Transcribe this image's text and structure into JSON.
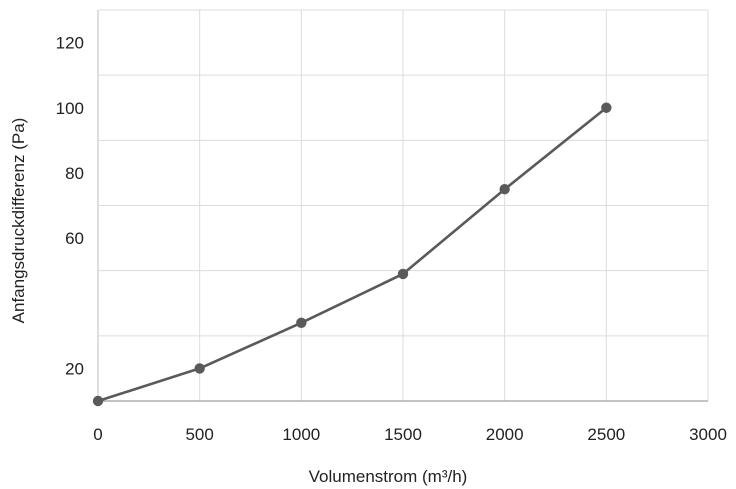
{
  "chart_data": {
    "type": "line",
    "xlabel": "Volumenstrom (m³/h)",
    "ylabel": "Anfangsdruckdifferenz (Pa)",
    "xlim": [
      0,
      3000
    ],
    "ylim": [
      10,
      130
    ],
    "x_ticks": [
      0,
      500,
      1000,
      1500,
      2000,
      2500,
      3000
    ],
    "y_ticks": [
      20,
      60,
      80,
      100,
      120
    ],
    "grid": true,
    "legend": "none",
    "series": [
      {
        "x": [
          0,
          500,
          1000,
          1500,
          2000,
          2500
        ],
        "y": [
          10,
          20,
          34,
          49,
          75,
          100
        ],
        "color": "#5a5a5a"
      }
    ]
  }
}
